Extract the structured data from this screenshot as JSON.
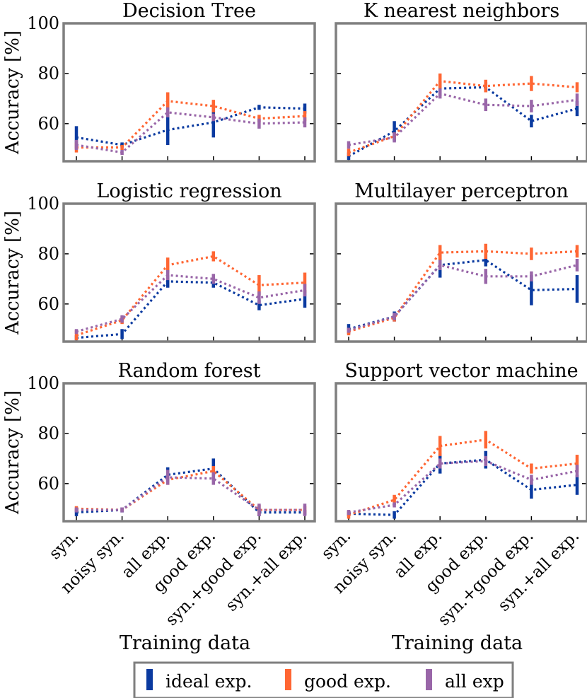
{
  "colors": {
    "ideal": "#0a3aa0",
    "good": "#ff6633",
    "all": "#9966a8",
    "frame": "#7f7f7f"
  },
  "legend": [
    {
      "key": "ideal",
      "label": "ideal exp."
    },
    {
      "key": "good",
      "label": "good exp."
    },
    {
      "key": "all",
      "label": "all exp"
    }
  ],
  "chart_data": [
    {
      "type": "line",
      "title": "Decision Tree",
      "ylabel": "Accuracy [%]",
      "xlabel": "",
      "ylim": [
        45,
        100
      ],
      "yticks": [
        60,
        80,
        100
      ],
      "categories": [
        "syn.",
        "noisy syn.",
        "all exp.",
        "good exp.",
        "syn.+good exp.",
        "syn.+all exp."
      ],
      "series": [
        {
          "key": "ideal",
          "name": "ideal exp.",
          "values": [
            54.5,
            51.5,
            57.5,
            60.5,
            66.5,
            66
          ],
          "err": [
            4.5,
            1,
            6,
            6,
            1,
            2
          ]
        },
        {
          "key": "good",
          "name": "good exp.",
          "values": [
            50.5,
            50.5,
            69,
            67,
            62,
            63
          ],
          "err": [
            2,
            1,
            3.5,
            2.5,
            1.5,
            2
          ]
        },
        {
          "key": "all",
          "name": "all exp",
          "values": [
            51.5,
            48.5,
            64.5,
            62.5,
            60,
            60.5
          ],
          "err": [
            2,
            1,
            2,
            1.5,
            2,
            2
          ]
        }
      ]
    },
    {
      "type": "line",
      "title": "K nearest neighbors",
      "ylabel": "",
      "xlabel": "",
      "ylim": [
        45,
        100
      ],
      "yticks": [
        60,
        80,
        100
      ],
      "categories": [
        "syn.",
        "noisy syn.",
        "all exp.",
        "good exp.",
        "syn.+good exp.",
        "syn.+all exp."
      ],
      "series": [
        {
          "key": "ideal",
          "name": "ideal exp.",
          "values": [
            47,
            57,
            74,
            74.5,
            61,
            66
          ],
          "err": [
            1.5,
            4,
            3,
            2,
            2.5,
            3
          ]
        },
        {
          "key": "good",
          "name": "good exp.",
          "values": [
            48.5,
            55,
            77,
            75,
            76,
            74.5
          ],
          "err": [
            1.5,
            1.5,
            3,
            2.5,
            3,
            2
          ]
        },
        {
          "key": "all",
          "name": "all exp",
          "values": [
            51.5,
            54.5,
            72,
            67.5,
            67,
            69.5
          ],
          "err": [
            1.5,
            2,
            2,
            2.5,
            2.5,
            2.5
          ]
        }
      ]
    },
    {
      "type": "line",
      "title": "Logistic regression",
      "ylabel": "Accuracy [%]",
      "xlabel": "",
      "ylim": [
        45,
        100
      ],
      "yticks": [
        60,
        80,
        100
      ],
      "categories": [
        "syn.",
        "noisy syn.",
        "all exp.",
        "good exp.",
        "syn.+good exp.",
        "syn.+all exp."
      ],
      "series": [
        {
          "key": "ideal",
          "name": "ideal exp.",
          "values": [
            46.5,
            48,
            69,
            68.5,
            59.5,
            62
          ],
          "err": [
            1,
            2,
            2.5,
            2,
            2,
            3.5
          ]
        },
        {
          "key": "good",
          "name": "good exp.",
          "values": [
            47.5,
            53.5,
            75.5,
            79,
            67.5,
            68.5
          ],
          "err": [
            2,
            1.5,
            3,
            2,
            4,
            4
          ]
        },
        {
          "key": "all",
          "name": "all exp",
          "values": [
            49,
            54,
            71.5,
            70,
            62.5,
            65.5
          ],
          "err": [
            1,
            1.5,
            2,
            2,
            2.5,
            2.5
          ]
        }
      ]
    },
    {
      "type": "line",
      "title": "Multilayer perceptron",
      "ylabel": "",
      "xlabel": "",
      "ylim": [
        45,
        100
      ],
      "yticks": [
        60,
        80,
        100
      ],
      "categories": [
        "syn.",
        "noisy syn.",
        "all exp.",
        "good exp.",
        "syn.+good exp.",
        "syn.+all exp."
      ],
      "series": [
        {
          "key": "ideal",
          "name": "ideal exp.",
          "values": [
            50,
            55,
            75.5,
            77.5,
            65.5,
            66
          ],
          "err": [
            2,
            2,
            5,
            2.5,
            6,
            5.5
          ]
        },
        {
          "key": "good",
          "name": "good exp.",
          "values": [
            49,
            54.5,
            80.5,
            81,
            80,
            81
          ],
          "err": [
            1.5,
            1.5,
            3,
            3,
            2.5,
            2.5
          ]
        },
        {
          "key": "all",
          "name": "all exp",
          "values": [
            49.5,
            55,
            75.5,
            71,
            71,
            75.5
          ],
          "err": [
            1,
            1.5,
            2,
            3,
            2,
            2.5
          ]
        }
      ]
    },
    {
      "type": "line",
      "title": "Random forest",
      "ylabel": "Accuracy [%]",
      "xlabel": "Training data",
      "ylim": [
        45,
        100
      ],
      "yticks": [
        60,
        80,
        100
      ],
      "categories": [
        "syn.",
        "noisy syn.",
        "all exp.",
        "good exp.",
        "syn.+good exp.",
        "syn.+all exp."
      ],
      "series": [
        {
          "key": "ideal",
          "name": "ideal exp.",
          "values": [
            48.5,
            49.5,
            63.5,
            66,
            48.5,
            48.5
          ],
          "err": [
            1.5,
            1,
            3,
            4,
            1.5,
            1
          ]
        },
        {
          "key": "good",
          "name": "good exp.",
          "values": [
            50,
            49.5,
            61.5,
            65,
            49.5,
            49.5
          ],
          "err": [
            1,
            0.5,
            2,
            2,
            2,
            1.5
          ]
        },
        {
          "key": "all",
          "name": "all exp",
          "values": [
            49.5,
            49.5,
            62.5,
            62,
            49.5,
            49.5
          ],
          "err": [
            1,
            1,
            3,
            2.5,
            2.5,
            2.5
          ]
        }
      ]
    },
    {
      "type": "line",
      "title": "Support vector machine",
      "ylabel": "",
      "xlabel": "Training data",
      "ylim": [
        45,
        100
      ],
      "yticks": [
        60,
        80,
        100
      ],
      "categories": [
        "syn.",
        "noisy syn.",
        "all exp.",
        "good exp.",
        "syn.+good exp.",
        "syn.+all exp."
      ],
      "series": [
        {
          "key": "ideal",
          "name": "ideal exp.",
          "values": [
            48,
            47.5,
            68,
            69.5,
            57.5,
            59.5
          ],
          "err": [
            1,
            1.5,
            4,
            3.5,
            3.5,
            4
          ]
        },
        {
          "key": "good",
          "name": "good exp.",
          "values": [
            47.5,
            53.5,
            75,
            77.5,
            66,
            68
          ],
          "err": [
            1.5,
            2,
            4,
            3.5,
            2,
            3.5
          ]
        },
        {
          "key": "all",
          "name": "all exp",
          "values": [
            48.5,
            51.5,
            68,
            69,
            61.5,
            65
          ],
          "err": [
            1,
            1,
            2,
            2,
            2,
            2.5
          ]
        }
      ]
    }
  ]
}
